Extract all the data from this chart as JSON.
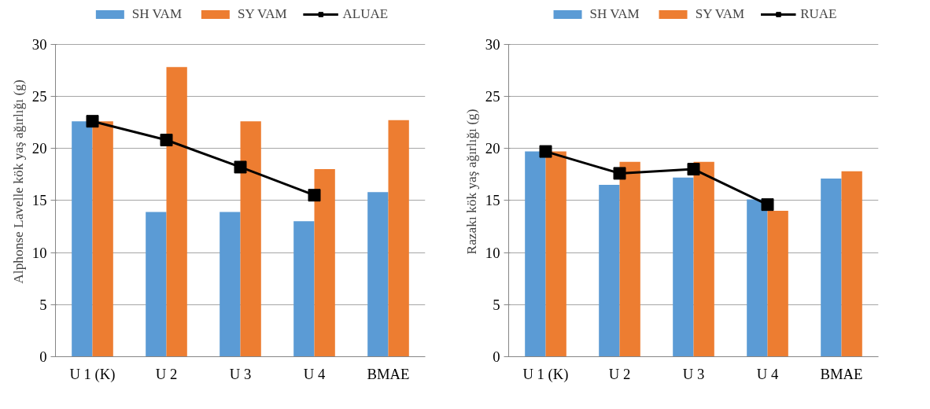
{
  "chart_data": [
    {
      "type": "bar",
      "ylabel": "Alphonse Lavelle kök yaş ağırlığı (g)",
      "categories": [
        "U 1 (K)",
        "U 2",
        "U 3",
        "U 4",
        "BMAE"
      ],
      "ylim": [
        0,
        30
      ],
      "yticks": [
        0,
        5,
        10,
        15,
        20,
        25,
        30
      ],
      "grid": "y",
      "legend": "top",
      "series": [
        {
          "name": "SH VAM",
          "color": "#5b9bd5",
          "values": [
            22.6,
            13.9,
            13.9,
            13.0,
            15.8
          ]
        },
        {
          "name": "SY VAM",
          "color": "#ed7d31",
          "values": [
            22.6,
            27.8,
            22.6,
            18.0,
            22.7
          ]
        },
        {
          "name": "ALUAE",
          "type": "line",
          "color": "#000000",
          "marker": "square",
          "line_style": "solid",
          "values": [
            22.6,
            20.8,
            18.2,
            15.5,
            null
          ]
        }
      ]
    },
    {
      "type": "bar",
      "ylabel": "Razakı kök yaş ağırlığı (g)",
      "categories": [
        "U 1 (K)",
        "U 2",
        "U 3",
        "U 4",
        "BMAE"
      ],
      "ylim": [
        0,
        30
      ],
      "yticks": [
        0,
        5,
        10,
        15,
        20,
        25,
        30
      ],
      "grid": "y",
      "legend": "top",
      "series": [
        {
          "name": "SH VAM",
          "color": "#5b9bd5",
          "values": [
            19.7,
            16.5,
            17.2,
            15.1,
            17.1
          ]
        },
        {
          "name": "SY VAM",
          "color": "#ed7d31",
          "values": [
            19.7,
            18.7,
            18.7,
            14.0,
            17.8
          ]
        },
        {
          "name": "RUAE",
          "type": "line",
          "color": "#000000",
          "marker": "square",
          "line_style": "solid",
          "values": [
            19.7,
            17.6,
            18.0,
            14.6,
            null
          ]
        }
      ]
    }
  ]
}
